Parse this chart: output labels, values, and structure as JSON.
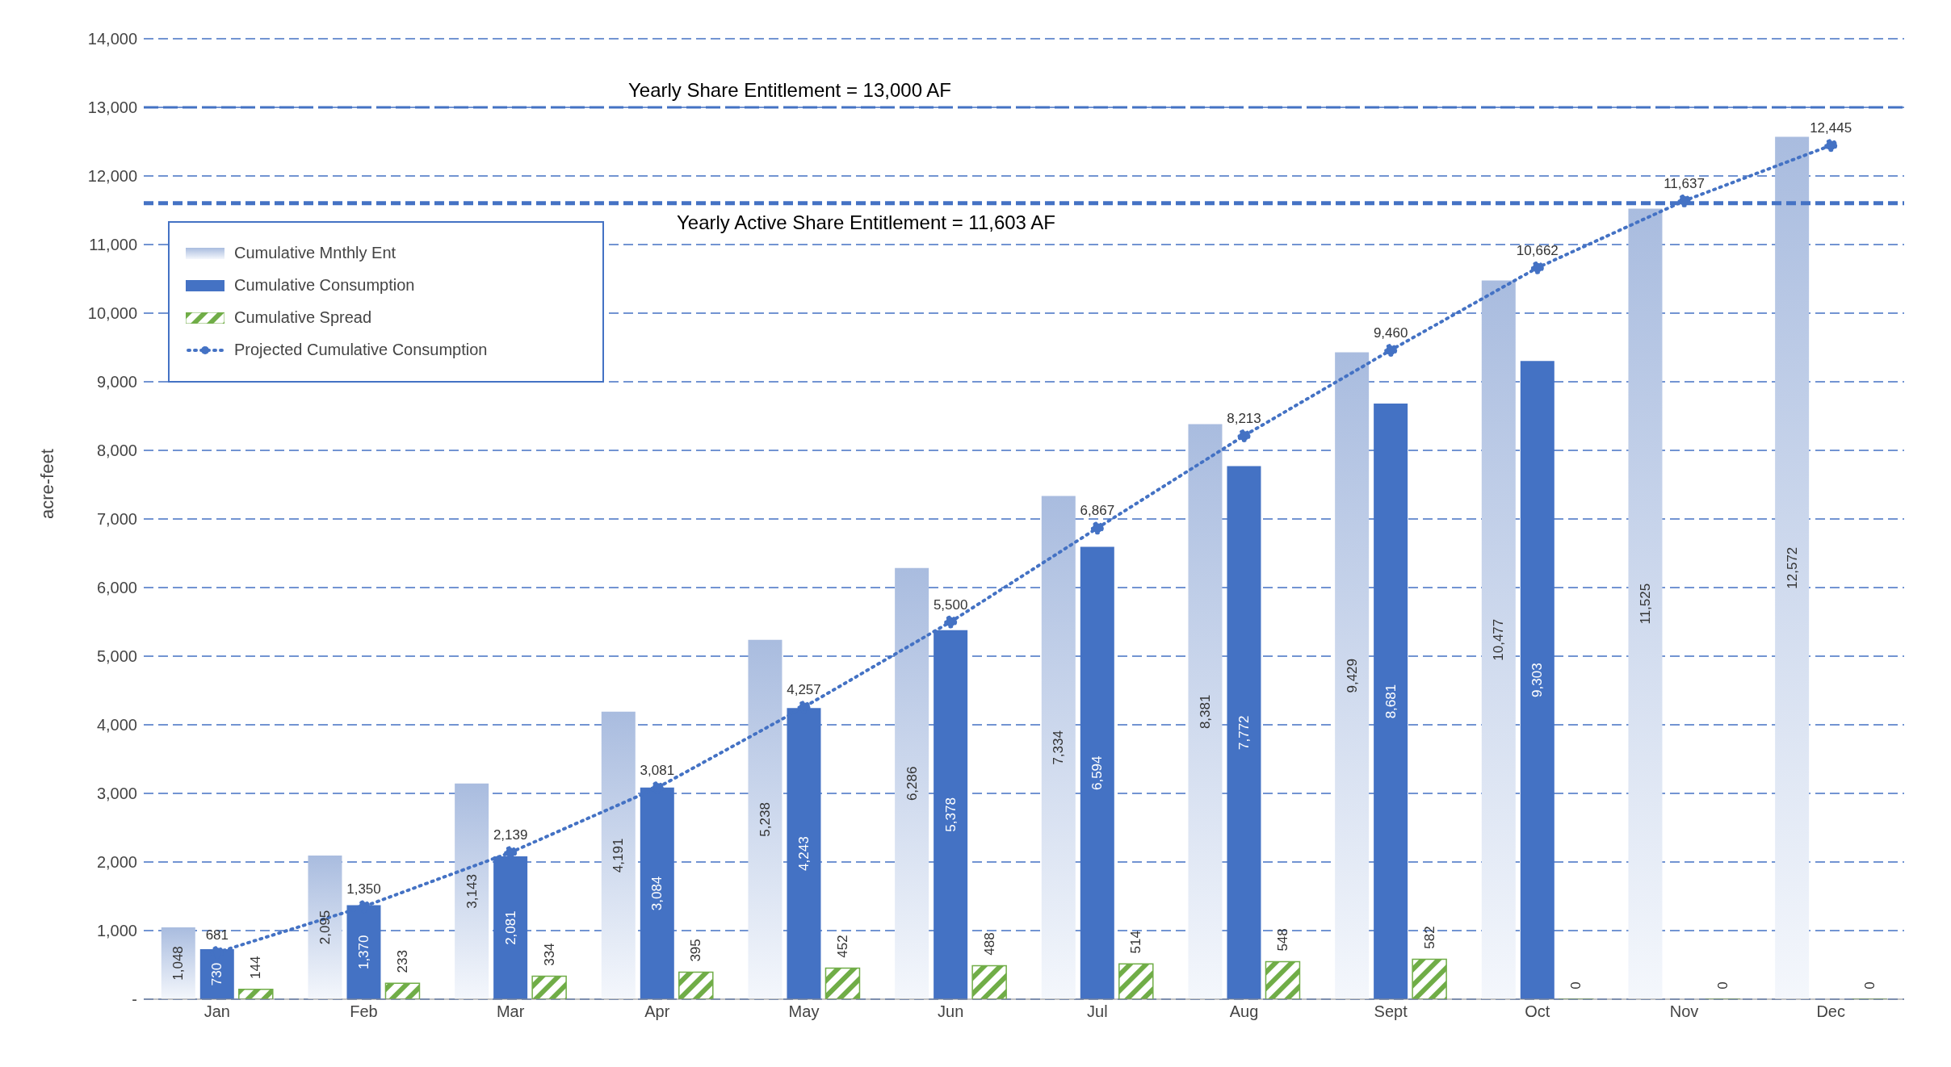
{
  "chart_data": {
    "type": "bar",
    "ylabel": "acre-feet",
    "categories": [
      "Jan",
      "Feb",
      "Mar",
      "Apr",
      "May",
      "Jun",
      "Jul",
      "Aug",
      "Sept",
      "Oct",
      "Nov",
      "Dec"
    ],
    "series": [
      {
        "name": "Cumulative Mnthly Ent",
        "color": "#a9bcdf",
        "values": [
          1048,
          2095,
          3143,
          4191,
          5238,
          6286,
          7334,
          8381,
          9429,
          10477,
          11525,
          12572
        ],
        "value_labels": [
          "1,048",
          "2,095",
          "3,143",
          "4,191",
          "5,238",
          "6,286",
          "7,334",
          "8,381",
          "9,429",
          "10,477",
          "11,525",
          "12,572"
        ]
      },
      {
        "name": "Cumulative Consumption",
        "color": "#4472c4",
        "values": [
          730,
          1370,
          2081,
          3084,
          4243,
          5378,
          6594,
          7772,
          8681,
          9303,
          null,
          null
        ],
        "value_labels": [
          "730",
          "1,370",
          "2,081",
          "3,084",
          "4,243",
          "5,378",
          "6,594",
          "7,772",
          "8,681",
          "9,303",
          null,
          null
        ]
      },
      {
        "name": "Cumulative Spread",
        "color": "#70ad47",
        "values": [
          144,
          233,
          334,
          395,
          452,
          488,
          514,
          548,
          582,
          0,
          0,
          0
        ],
        "value_labels": [
          "144",
          "233",
          "334",
          "395",
          "452",
          "488",
          "514",
          "548",
          "582",
          "0",
          "0",
          "0"
        ]
      },
      {
        "name": "Projected Cumulative Consumption",
        "type": "line",
        "color": "#4472c4",
        "marker": "circle",
        "line_style": "dotted",
        "values": [
          681,
          1350,
          2139,
          3081,
          4257,
          5500,
          6867,
          8213,
          9460,
          10662,
          11637,
          12445
        ],
        "value_labels": [
          "681",
          "1,350",
          "2,139",
          "3,081",
          "4,257",
          "5,500",
          "6,867",
          "8,213",
          "9,460",
          "10,662",
          "11,637",
          "12,445"
        ]
      }
    ],
    "ylim": [
      0,
      14000
    ],
    "yticks": [
      {
        "value": 0,
        "label": "-"
      },
      {
        "value": 1000,
        "label": "1,000"
      },
      {
        "value": 2000,
        "label": "2,000"
      },
      {
        "value": 3000,
        "label": "3,000"
      },
      {
        "value": 4000,
        "label": "4,000"
      },
      {
        "value": 5000,
        "label": "5,000"
      },
      {
        "value": 6000,
        "label": "6,000"
      },
      {
        "value": 7000,
        "label": "7,000"
      },
      {
        "value": 8000,
        "label": "8,000"
      },
      {
        "value": 9000,
        "label": "9,000"
      },
      {
        "value": 10000,
        "label": "10,000"
      },
      {
        "value": 11000,
        "label": "11,000"
      },
      {
        "value": 12000,
        "label": "12,000"
      },
      {
        "value": 13000,
        "label": "13,000"
      },
      {
        "value": 14000,
        "label": "14,000"
      }
    ],
    "ref_lines": [
      {
        "axis": "y",
        "value": 13000,
        "label": "Yearly Share Entitlement = 13,000 AF",
        "color": "#4472c4",
        "line_style": "dashed"
      },
      {
        "axis": "y",
        "value": 11603,
        "label": "Yearly Active Share Entitlement = 11,603 AF",
        "color": "#4472c4",
        "line_style": "dashed"
      }
    ],
    "grid": "y",
    "legend": "top left"
  }
}
